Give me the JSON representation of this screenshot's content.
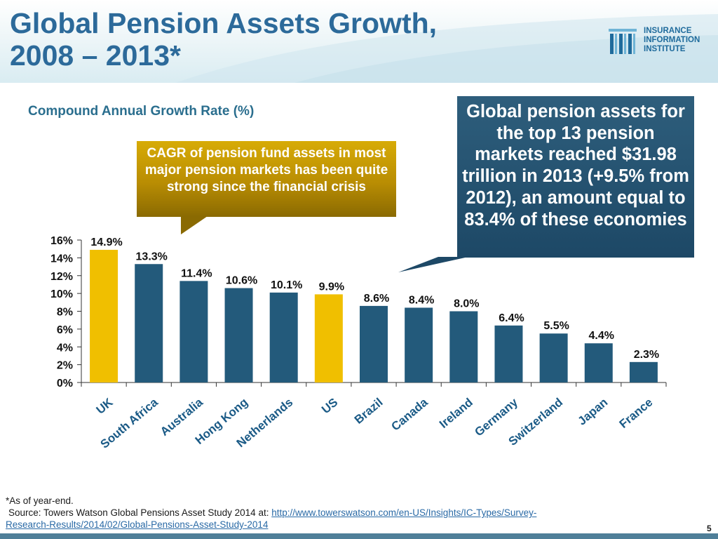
{
  "header": {
    "title_line1": "Global Pension Assets Growth,",
    "title_line2": "2008 – 2013*"
  },
  "logo": {
    "line1": "INSURANCE",
    "line2": "INFORMATION",
    "line3": "INSTITUTE"
  },
  "chart_data": {
    "type": "bar",
    "title": "Compound Annual Growth Rate (%)",
    "categories": [
      "UK",
      "South Africa",
      "Australia",
      "Hong Kong",
      "Netherlands",
      "US",
      "Brazil",
      "Canada",
      "Ireland",
      "Germany",
      "Switzerland",
      "Japan",
      "France"
    ],
    "values": [
      14.9,
      13.3,
      11.4,
      10.6,
      10.1,
      9.9,
      8.6,
      8.4,
      8.0,
      6.4,
      5.5,
      4.4,
      2.3
    ],
    "data_labels": [
      "14.9%",
      "13.3%",
      "11.4%",
      "10.6%",
      "10.1%",
      "9.9%",
      "8.6%",
      "8.4%",
      "8.0%",
      "6.4%",
      "5.5%",
      "4.4%",
      "2.3%"
    ],
    "highlighted": [
      "UK",
      "US"
    ],
    "ylim": [
      0,
      16
    ],
    "yticks": [
      0,
      2,
      4,
      6,
      8,
      10,
      12,
      14,
      16
    ],
    "ytick_labels": [
      "0%",
      "2%",
      "4%",
      "6%",
      "8%",
      "10%",
      "12%",
      "14%",
      "16%"
    ],
    "xlabel": "",
    "ylabel": "",
    "colors": {
      "highlight": "#f0bf00",
      "default": "#235a7b"
    }
  },
  "callouts": {
    "gold": "CAGR of pension fund assets in most major pension markets has been quite strong since the financial crisis",
    "blue": "Global pension assets for the top 13 pension markets reached $31.98 trillion in 2013 (+9.5% from 2012), an amount equal to 83.4% of these economies"
  },
  "footnote": {
    "note": "*As of year-end.",
    "source_prefix": "Source: Towers Watson Global Pensions Asset Study 2014 at: ",
    "source_link_part1": "http://www.towerswatson.com/en-US/Insights/IC-Types/Survey-",
    "source_link_part2": "Research-Results/2014/02/Global-Pensions-Asset-Study-2014"
  },
  "page_number": "5"
}
